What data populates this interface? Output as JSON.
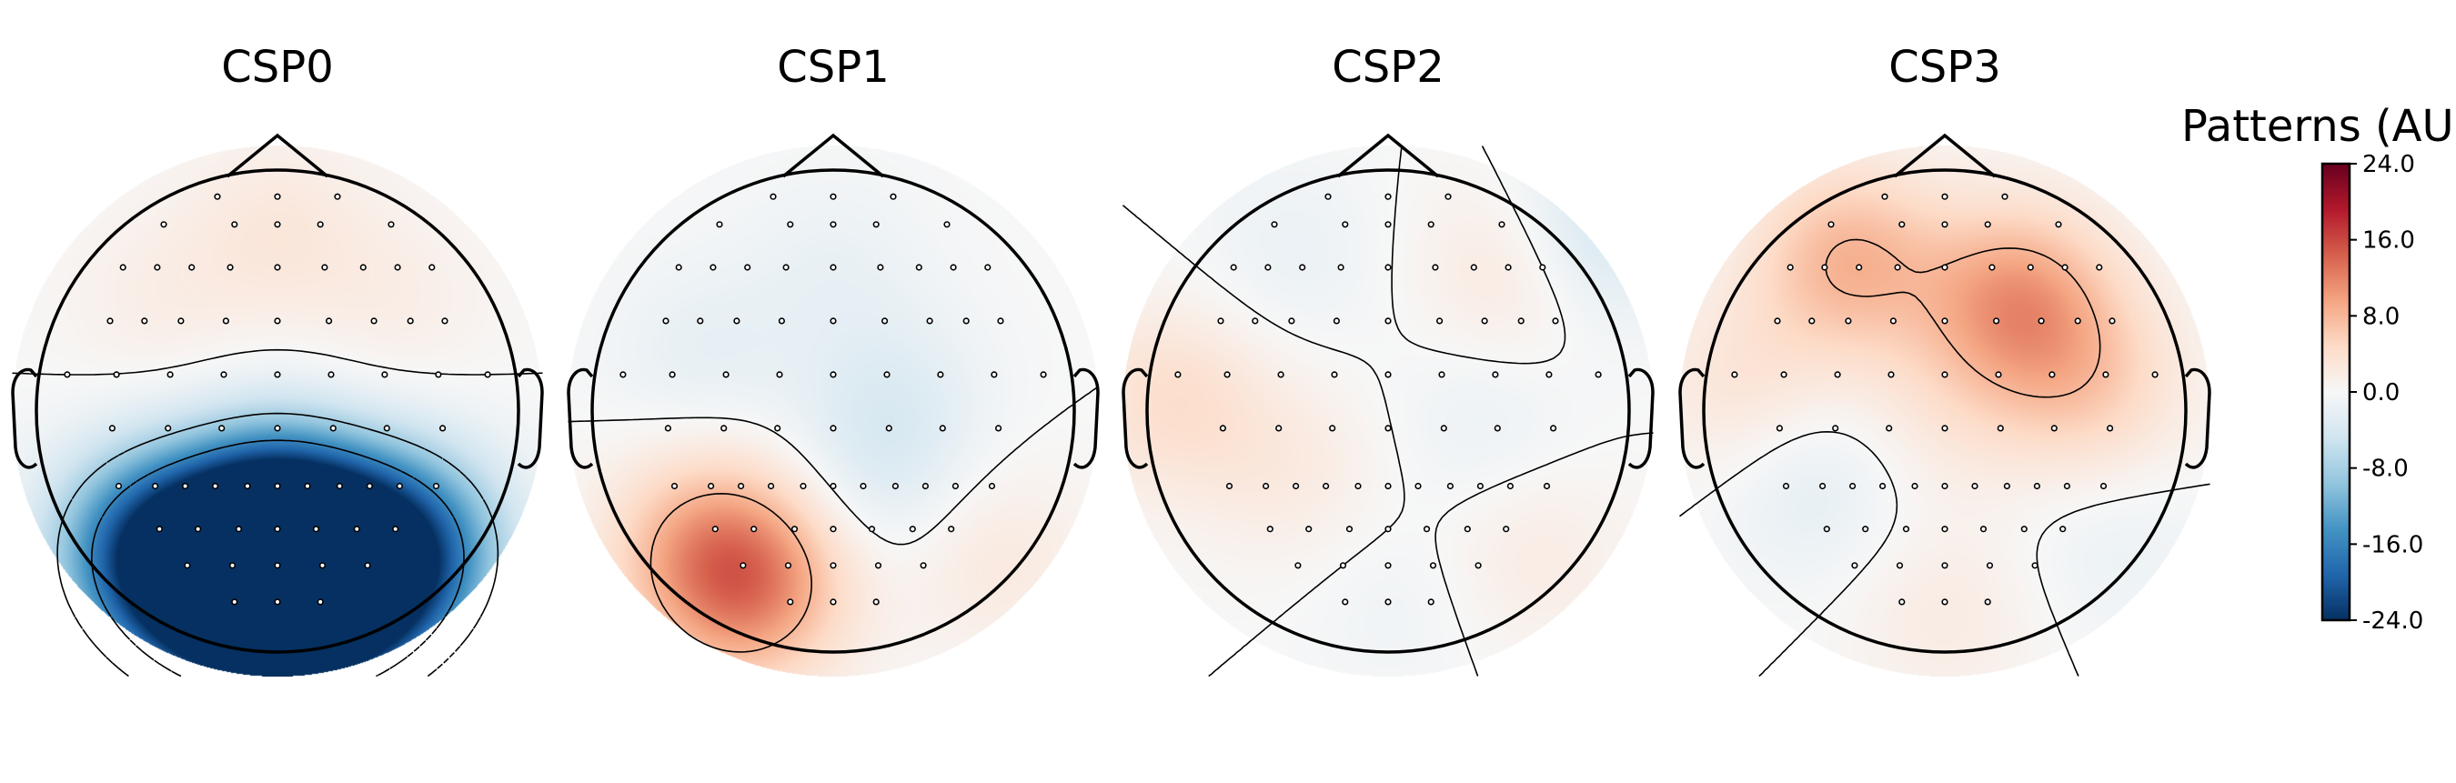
{
  "chart_data": {
    "type": "heatmap",
    "figure_kind": "eeg-topomap",
    "colormap": "RdBu_r",
    "colormap_stops": [
      "#053061",
      "#2166ac",
      "#4393c3",
      "#92c5de",
      "#d1e5f0",
      "#f7f7f7",
      "#fddbc7",
      "#f4a582",
      "#d6604d",
      "#b2182b",
      "#67001f"
    ],
    "colorbar": {
      "label": "Patterns (AU)",
      "min": -24.0,
      "max": 24.0,
      "ticks": [
        "24.0",
        "16.0",
        "8.0",
        "0.0",
        "-8.0",
        "-16.0",
        "-24.0"
      ]
    },
    "panels": [
      {
        "title": "CSP0",
        "sources": [
          {
            "x": -0.3,
            "y": -0.72,
            "v": -22
          },
          {
            "x": 0.3,
            "y": -0.72,
            "v": -23
          },
          {
            "x": 0.0,
            "y": -0.82,
            "v": -18
          },
          {
            "x": 0.0,
            "y": -0.6,
            "v": -20
          },
          {
            "x": -0.55,
            "y": -0.55,
            "v": -14
          },
          {
            "x": 0.55,
            "y": -0.55,
            "v": -14
          },
          {
            "x": 0.0,
            "y": -0.42,
            "v": -12
          },
          {
            "x": 0.0,
            "y": 0.75,
            "v": 2.5
          },
          {
            "x": -0.5,
            "y": 0.45,
            "v": 1.5
          },
          {
            "x": 0.5,
            "y": 0.45,
            "v": 1.5
          }
        ],
        "contour_levels": [
          -16,
          -8,
          0
        ]
      },
      {
        "title": "CSP1",
        "sources": [
          {
            "x": -0.35,
            "y": -0.72,
            "v": 11
          },
          {
            "x": -0.55,
            "y": -0.55,
            "v": 6
          },
          {
            "x": 0.25,
            "y": 0.05,
            "v": -2.5
          },
          {
            "x": -0.55,
            "y": 0.22,
            "v": -2
          },
          {
            "x": 0.2,
            "y": -0.3,
            "v": -2.5
          },
          {
            "x": 0.65,
            "y": -0.6,
            "v": 2.5
          },
          {
            "x": 0.0,
            "y": 0.6,
            "v": -1.5
          }
        ],
        "contour_levels": [
          0,
          8
        ]
      },
      {
        "title": "CSP2",
        "sources": [
          {
            "x": -0.9,
            "y": 0.05,
            "v": 4
          },
          {
            "x": 0.55,
            "y": 0.6,
            "v": 3.5
          },
          {
            "x": 0.85,
            "y": 0.75,
            "v": -5
          },
          {
            "x": 0.4,
            "y": -0.05,
            "v": -1.5
          },
          {
            "x": 0.05,
            "y": -0.8,
            "v": -1
          },
          {
            "x": -0.4,
            "y": 0.65,
            "v": -1.5
          },
          {
            "x": -0.4,
            "y": -0.25,
            "v": 2
          },
          {
            "x": 0.6,
            "y": -0.6,
            "v": 2
          }
        ],
        "contour_levels": [
          -8,
          0
        ]
      },
      {
        "title": "CSP3",
        "sources": [
          {
            "x": 0.3,
            "y": 0.45,
            "v": 10
          },
          {
            "x": -0.4,
            "y": 0.62,
            "v": 8
          },
          {
            "x": 0.6,
            "y": 0.1,
            "v": 5
          },
          {
            "x": -0.55,
            "y": -0.3,
            "v": -2.5
          },
          {
            "x": 0.7,
            "y": -0.55,
            "v": -1.5
          },
          {
            "x": -0.85,
            "y": 0.1,
            "v": 3
          },
          {
            "x": 0.0,
            "y": -0.85,
            "v": 2
          },
          {
            "x": 0.0,
            "y": 0.0,
            "v": 2
          }
        ],
        "contour_levels": [
          0,
          8
        ]
      }
    ],
    "sensor_layout": {
      "unit": "head-radius",
      "rows": [
        {
          "y": 1.0,
          "x": [
            -0.28,
            0.0,
            0.28
          ]
        },
        {
          "y": 0.87,
          "x": [
            -0.53,
            -0.2,
            0.0,
            0.2,
            0.53
          ]
        },
        {
          "y": 0.67,
          "x": [
            -0.72,
            -0.56,
            -0.4,
            -0.22,
            0.0,
            0.22,
            0.4,
            0.56,
            0.72
          ]
        },
        {
          "y": 0.42,
          "x": [
            -0.78,
            -0.62,
            -0.45,
            -0.24,
            0.0,
            0.24,
            0.45,
            0.62,
            0.78
          ]
        },
        {
          "y": 0.17,
          "x": [
            -0.98,
            -0.75,
            -0.5,
            -0.25,
            0.0,
            0.25,
            0.5,
            0.75,
            0.98
          ]
        },
        {
          "y": -0.08,
          "x": [
            -0.77,
            -0.51,
            -0.26,
            0.0,
            0.26,
            0.51,
            0.77
          ]
        },
        {
          "y": -0.35,
          "x": [
            -0.74,
            -0.57,
            -0.43,
            -0.29,
            -0.14,
            0.0,
            0.14,
            0.29,
            0.43,
            0.57,
            0.74
          ]
        },
        {
          "y": -0.55,
          "x": [
            -0.55,
            -0.37,
            -0.18,
            0.0,
            0.18,
            0.37,
            0.55
          ]
        },
        {
          "y": -0.72,
          "x": [
            -0.42,
            -0.21,
            0.0,
            0.21,
            0.42
          ]
        },
        {
          "y": -0.89,
          "x": [
            -0.2,
            0.0,
            0.2
          ]
        }
      ]
    }
  }
}
